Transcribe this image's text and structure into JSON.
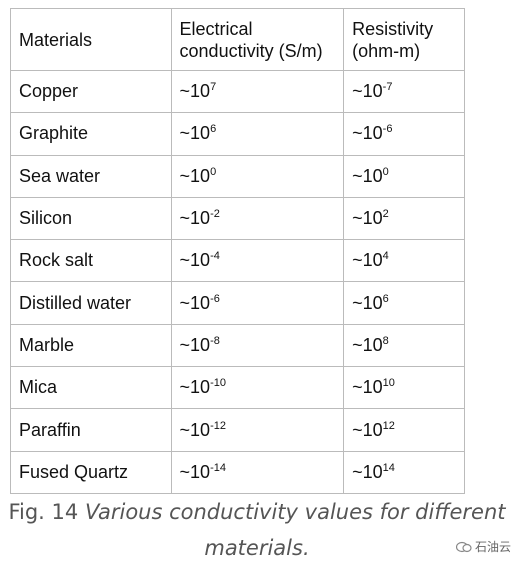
{
  "table": {
    "header": [
      "Materials",
      "Electrical conductivity (S/m)",
      "Resistivity (ohm-m)"
    ],
    "rows": [
      [
        "Copper",
        {
          "base": "~10",
          "exp": "7"
        },
        {
          "base": "~10",
          "exp": "-7"
        }
      ],
      [
        "Graphite",
        {
          "base": "~10",
          "exp": "6"
        },
        {
          "base": "~10",
          "exp": "-6"
        }
      ],
      [
        "Sea water",
        {
          "base": "~10",
          "exp": "0"
        },
        {
          "base": "~10",
          "exp": "0"
        }
      ],
      [
        "Silicon",
        {
          "base": "~10",
          "exp": "-2"
        },
        {
          "base": "~10",
          "exp": "2"
        }
      ],
      [
        "Rock salt",
        {
          "base": "~10",
          "exp": "-4"
        },
        {
          "base": "~10",
          "exp": "4"
        }
      ],
      [
        "Distilled water",
        {
          "base": "~10",
          "exp": "-6"
        },
        {
          "base": "~10",
          "exp": "6"
        }
      ],
      [
        "Marble",
        {
          "base": "~10",
          "exp": "-8"
        },
        {
          "base": "~10",
          "exp": "8"
        }
      ],
      [
        "Mica",
        {
          "base": "~10",
          "exp": "-10"
        },
        {
          "base": "~10",
          "exp": "10"
        }
      ],
      [
        "Paraffin",
        {
          "base": "~10",
          "exp": "-12"
        },
        {
          "base": "~10",
          "exp": "12"
        }
      ],
      [
        "Fused Quartz",
        {
          "base": "~10",
          "exp": "-14"
        },
        {
          "base": "~10",
          "exp": "14"
        }
      ]
    ]
  },
  "caption": {
    "label": "Fig. 14",
    "text": "Various conductivity values for different materials."
  },
  "watermark": "石油云"
}
